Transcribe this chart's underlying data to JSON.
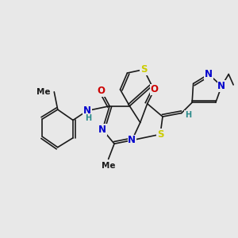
{
  "bg_color": "#e8e8e8",
  "bond_color": "#1a1a1a",
  "atom_colors": {
    "N": "#0000cc",
    "O": "#cc0000",
    "S": "#cccc00",
    "H": "#2a8a8a",
    "C": "#1a1a1a"
  },
  "font_size_atom": 8.5,
  "font_size_small": 7.0,
  "font_size_label": 7.5
}
